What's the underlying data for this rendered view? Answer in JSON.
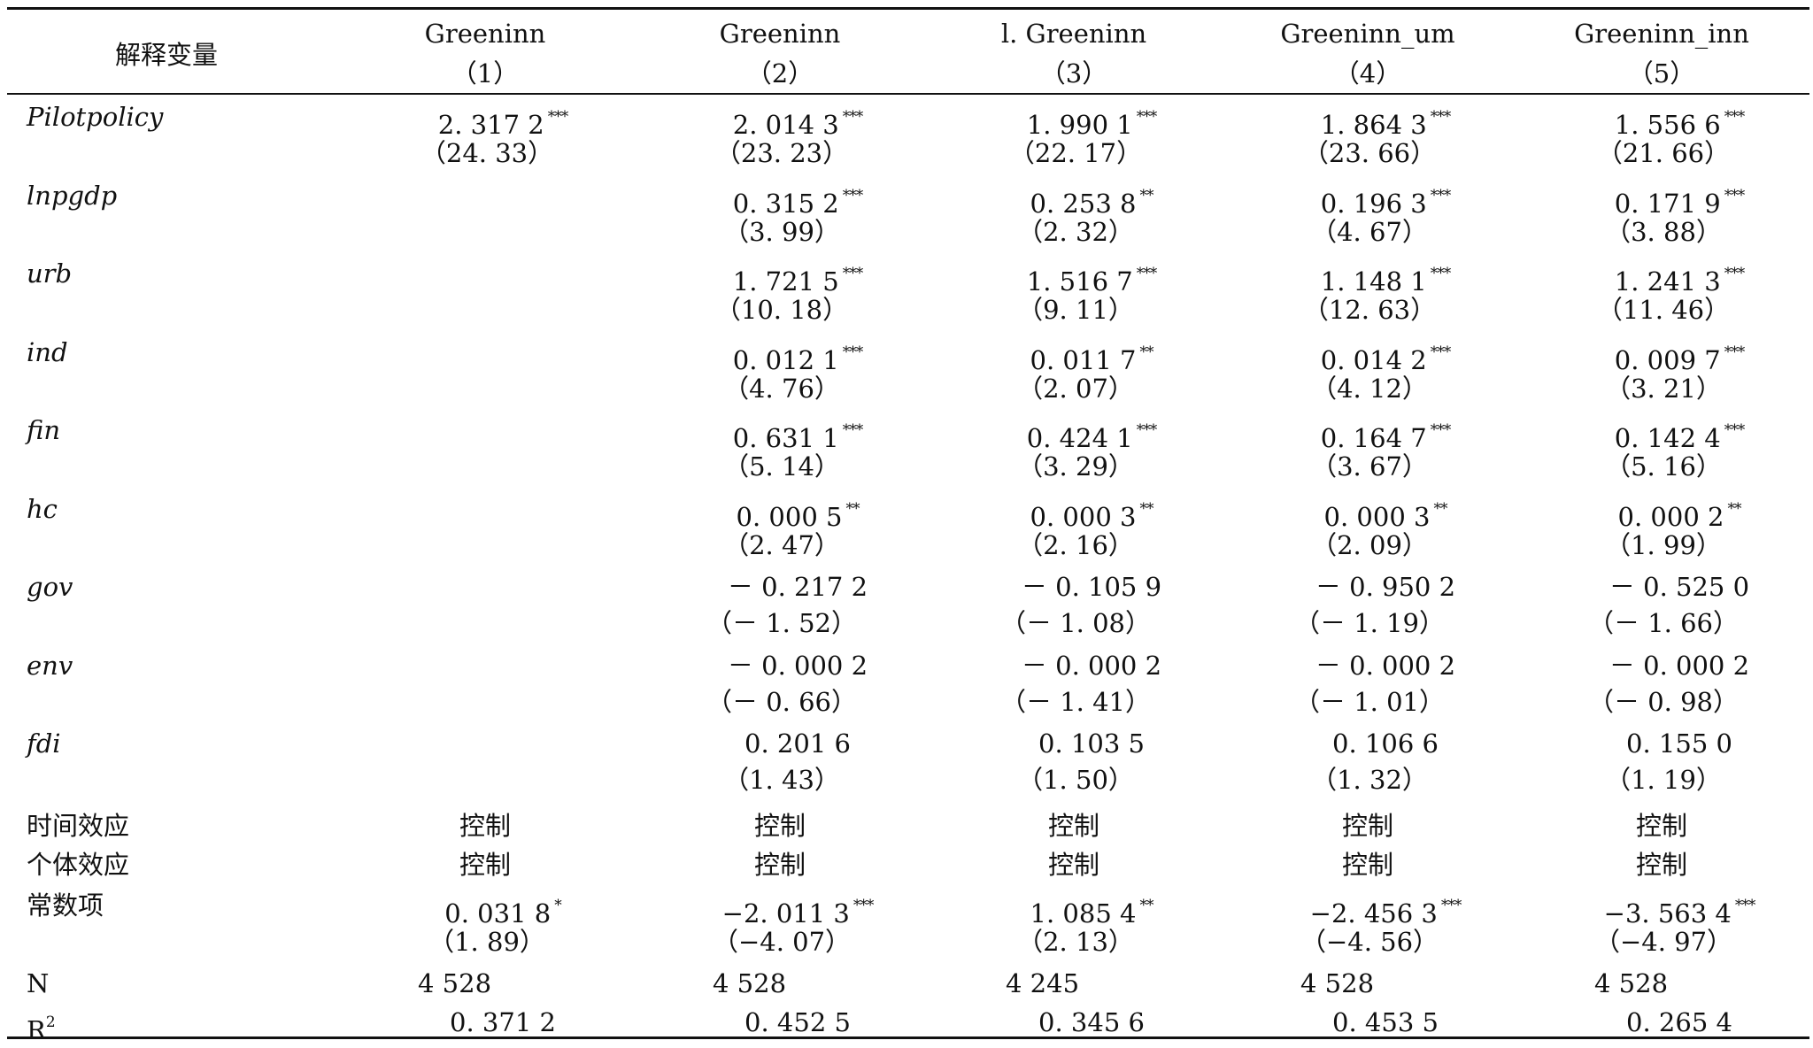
{
  "header": {
    "row_label": "解释变量",
    "columns": [
      {
        "dep": "Greeninn",
        "num": "（1）"
      },
      {
        "dep": "Greeninn",
        "num": "（2）"
      },
      {
        "dep": "l. Greeninn",
        "num": "（3）"
      },
      {
        "dep": "Greeninn_um",
        "num": "（4）"
      },
      {
        "dep": "Greeninn_inn",
        "num": "（5）"
      }
    ]
  },
  "rows": [
    {
      "label": "Pilotpolicy",
      "italic": true,
      "cells": [
        {
          "coef": "2. 317 2",
          "stars": "***",
          "t": "（24. 33）"
        },
        {
          "coef": "2. 014 3",
          "stars": "***",
          "t": "（23. 23）"
        },
        {
          "coef": "1. 990 1",
          "stars": "***",
          "t": "（22. 17）"
        },
        {
          "coef": "1. 864 3",
          "stars": "***",
          "t": "（23. 66）"
        },
        {
          "coef": "1. 556 6",
          "stars": "***",
          "t": "（21. 66）"
        }
      ]
    },
    {
      "label": "lnpgdp",
      "italic": true,
      "cells": [
        null,
        {
          "coef": "0. 315 2",
          "stars": "***",
          "t": "（3. 99）"
        },
        {
          "coef": "0. 253 8",
          "stars": "**",
          "t": "（2. 32）"
        },
        {
          "coef": "0. 196 3",
          "stars": "***",
          "t": "（4. 67）"
        },
        {
          "coef": "0. 171 9",
          "stars": "***",
          "t": "（3. 88）"
        }
      ]
    },
    {
      "label": "urb",
      "italic": true,
      "cells": [
        null,
        {
          "coef": "1. 721 5",
          "stars": "***",
          "t": "（10. 18）"
        },
        {
          "coef": "1. 516 7",
          "stars": "***",
          "t": "（9. 11）"
        },
        {
          "coef": "1. 148 1",
          "stars": "***",
          "t": "（12. 63）"
        },
        {
          "coef": "1. 241 3",
          "stars": "***",
          "t": "（11. 46）"
        }
      ]
    },
    {
      "label": "ind",
      "italic": true,
      "cells": [
        null,
        {
          "coef": "0. 012 1",
          "stars": "***",
          "t": "（4. 76）"
        },
        {
          "coef": "0. 011 7",
          "stars": "**",
          "t": "（2. 07）"
        },
        {
          "coef": "0. 014 2",
          "stars": "***",
          "t": "（4. 12）"
        },
        {
          "coef": "0. 009 7",
          "stars": "***",
          "t": "（3. 21）"
        }
      ]
    },
    {
      "label": "fin",
      "italic": true,
      "cells": [
        null,
        {
          "coef": "0. 631 1",
          "stars": "***",
          "t": "（5. 14）"
        },
        {
          "coef": "0. 424 1",
          "stars": "***",
          "t": "（3. 29）"
        },
        {
          "coef": "0. 164 7",
          "stars": "***",
          "t": "（3. 67）"
        },
        {
          "coef": "0. 142 4",
          "stars": "***",
          "t": "（5. 16）"
        }
      ]
    },
    {
      "label": "hc",
      "italic": true,
      "cells": [
        null,
        {
          "coef": "0. 000 5",
          "stars": "**",
          "t": "（2. 47）"
        },
        {
          "coef": "0. 000 3",
          "stars": "**",
          "t": "（2. 16）"
        },
        {
          "coef": "0. 000 3",
          "stars": "**",
          "t": "（2. 09）"
        },
        {
          "coef": "0. 000 2",
          "stars": "**",
          "t": "（1. 99）"
        }
      ]
    },
    {
      "label": "gov",
      "italic": true,
      "cells": [
        null,
        {
          "coef": "－ 0. 217 2",
          "stars": "",
          "t": "（－ 1. 52）"
        },
        {
          "coef": "－ 0. 105 9",
          "stars": "",
          "t": "（－ 1. 08）"
        },
        {
          "coef": "－ 0. 950 2",
          "stars": "",
          "t": "（－ 1. 19）"
        },
        {
          "coef": "－ 0. 525 0",
          "stars": "",
          "t": "（－ 1. 66）"
        }
      ]
    },
    {
      "label": "env",
      "italic": true,
      "cells": [
        null,
        {
          "coef": "－ 0. 000 2",
          "stars": "",
          "t": "（－ 0. 66）"
        },
        {
          "coef": "－ 0. 000 2",
          "stars": "",
          "t": "（－ 1. 41）"
        },
        {
          "coef": "－ 0. 000 2",
          "stars": "",
          "t": "（－ 1. 01）"
        },
        {
          "coef": "－ 0. 000 2",
          "stars": "",
          "t": "（－ 0. 98）"
        }
      ]
    },
    {
      "label": "fdi",
      "italic": true,
      "cells": [
        null,
        {
          "coef": "0. 201 6",
          "stars": "",
          "t": "（1. 43）"
        },
        {
          "coef": "0. 103 5",
          "stars": "",
          "t": "（1. 50）"
        },
        {
          "coef": "0. 106 6",
          "stars": "",
          "t": "（1. 32）"
        },
        {
          "coef": "0. 155 0",
          "stars": "",
          "t": "（1. 19）"
        }
      ]
    }
  ],
  "effects": [
    {
      "label": "时间效应",
      "values": [
        "控制",
        "控制",
        "控制",
        "控制",
        "控制"
      ]
    },
    {
      "label": "个体效应",
      "values": [
        "控制",
        "控制",
        "控制",
        "控制",
        "控制"
      ]
    }
  ],
  "constant": {
    "label": "常数项",
    "cells": [
      {
        "coef": "0. 031 8",
        "stars": "*",
        "t": "（1. 89）"
      },
      {
        "coef": "−2. 011 3",
        "stars": "***",
        "t": "（−4. 07）"
      },
      {
        "coef": "1. 085 4",
        "stars": "**",
        "t": "（2. 13）"
      },
      {
        "coef": "−2. 456 3",
        "stars": "***",
        "t": "（−4. 56）"
      },
      {
        "coef": "−3. 563 4",
        "stars": "***",
        "t": "（−4. 97）"
      }
    ]
  },
  "n_row": {
    "label": "N",
    "values": [
      "4 528",
      "4 528",
      "4 245",
      "4 528",
      "4 528"
    ]
  },
  "r2_row": {
    "label": "R",
    "label_sup": "2",
    "values": [
      "0. 371 2",
      "0. 452 5",
      "0. 345 6",
      "0. 453 5",
      "0. 265 4"
    ]
  }
}
